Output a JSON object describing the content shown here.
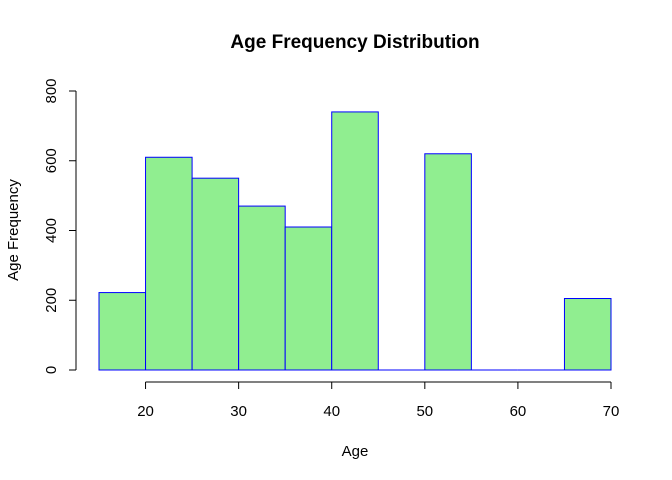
{
  "chart_data": {
    "type": "bar",
    "subtype": "histogram",
    "title": "Age Frequency Distribution",
    "xlabel": "Age",
    "ylabel": "Age Frequency",
    "bins": [
      {
        "x0": 15,
        "x1": 20,
        "count": 222
      },
      {
        "x0": 20,
        "x1": 25,
        "count": 610
      },
      {
        "x0": 25,
        "x1": 30,
        "count": 550
      },
      {
        "x0": 30,
        "x1": 35,
        "count": 470
      },
      {
        "x0": 35,
        "x1": 40,
        "count": 410
      },
      {
        "x0": 40,
        "x1": 45,
        "count": 740
      },
      {
        "x0": 45,
        "x1": 50,
        "count": 0
      },
      {
        "x0": 50,
        "x1": 55,
        "count": 620
      },
      {
        "x0": 55,
        "x1": 60,
        "count": 0
      },
      {
        "x0": 60,
        "x1": 65,
        "count": 0
      },
      {
        "x0": 65,
        "x1": 70,
        "count": 205
      }
    ],
    "xlim": [
      15,
      70
    ],
    "ylim": [
      0,
      800
    ],
    "x_ticks": [
      20,
      30,
      40,
      50,
      60,
      70
    ],
    "y_ticks": [
      0,
      200,
      400,
      600,
      800
    ],
    "grid": false,
    "legend": "none",
    "bar_fill": "#90ee90",
    "bar_border": "#0000ff"
  }
}
